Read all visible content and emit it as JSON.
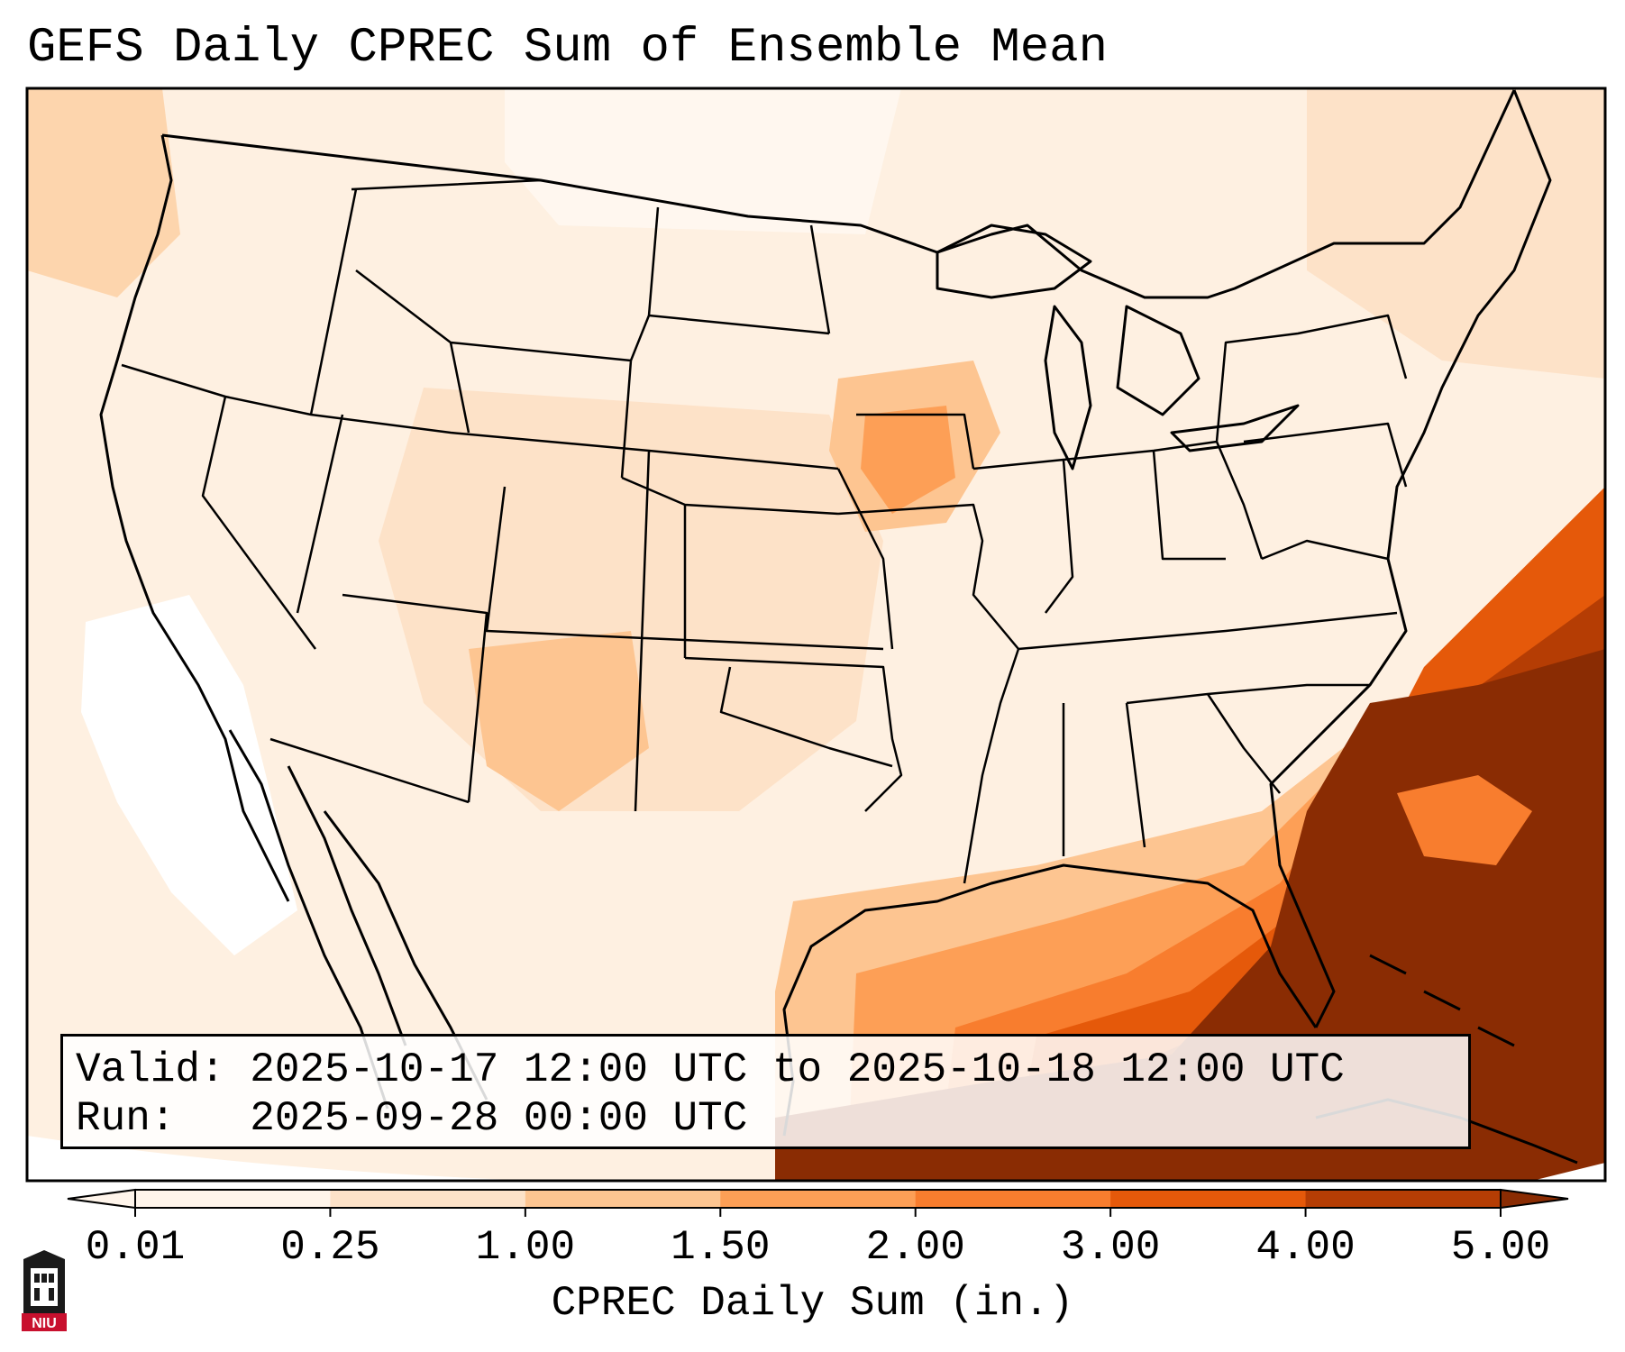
{
  "title": "GEFS Daily CPREC Sum of Ensemble Mean",
  "infobox": {
    "valid_label": "Valid:",
    "valid_value": "2025-10-17 12:00 UTC to 2025-10-18 12:00 UTC",
    "run_label": "Run:",
    "run_value": "2025-09-28 00:00 UTC"
  },
  "colorbar": {
    "label": "CPREC Daily Sum (in.)",
    "ticks": [
      "0.01",
      "0.25",
      "1.00",
      "1.50",
      "2.00",
      "3.00",
      "4.00",
      "5.00"
    ],
    "colors": [
      "#fff5eb",
      "#fde2c8",
      "#fdc591",
      "#fd9f56",
      "#f87d2e",
      "#e5590a",
      "#b53d04",
      "#8a2c03"
    ],
    "extend": "both"
  },
  "map": {
    "projection": "conus-lambert",
    "region": "Contiguous United States, Mexico, Caribbean",
    "heaviest_color": "#8a2c03",
    "lightest_color": "#fff5eb"
  },
  "logo": {
    "text": "NIU",
    "color": "#c8102e"
  }
}
